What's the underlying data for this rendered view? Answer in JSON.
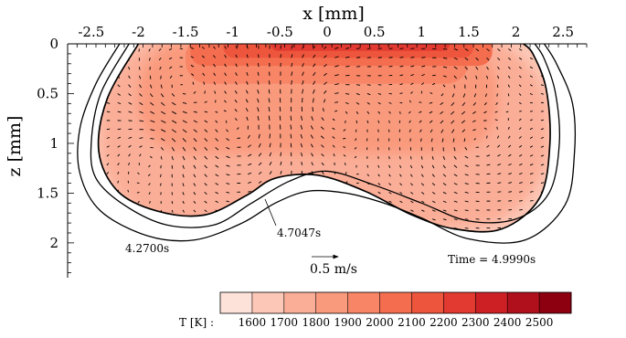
{
  "chart_data": {
    "type": "heatmap",
    "title": "",
    "xlabel": "x [mm]",
    "ylabel": "z [mm]",
    "xlim": [
      -2.75,
      2.75
    ],
    "ylim": [
      0,
      2.35
    ],
    "y_inverted": true,
    "x_ticks": [
      "-2.5",
      "-2",
      "-1.5",
      "-1",
      "-0.5",
      "0",
      "0.5",
      "1",
      "1.5",
      "2",
      "2.5"
    ],
    "x_tick_values": [
      -2.5,
      -2,
      -1.5,
      -1,
      -0.5,
      0,
      0.5,
      1,
      1.5,
      2,
      2.5
    ],
    "y_ticks": [
      "0",
      "0.5",
      "1",
      "1.5",
      "2"
    ],
    "y_tick_values": [
      0,
      0.5,
      1,
      1.5,
      2
    ],
    "colorbar": {
      "label": "T [K] :",
      "levels": [
        "1600",
        "1700",
        "1800",
        "1900",
        "2000",
        "2100",
        "2200",
        "2300",
        "2400",
        "2500"
      ],
      "level_values": [
        1600,
        1700,
        1800,
        1900,
        2000,
        2100,
        2200,
        2300,
        2400,
        2500
      ],
      "colors": [
        "#fde2da",
        "#fcc7b6",
        "#fbae97",
        "#fa9a7d",
        "#f88566",
        "#f46d4f",
        "#ee553d",
        "#e23a30",
        "#cc2025",
        "#b0101c",
        "#8c0010"
      ]
    },
    "pool_boundaries": [
      {
        "label": "4.2700s",
        "points": [
          [
            -2.2,
            0.0
          ],
          [
            -2.45,
            0.4
          ],
          [
            -2.62,
            0.85
          ],
          [
            -2.62,
            1.3
          ],
          [
            -2.4,
            1.68
          ],
          [
            -1.9,
            1.93
          ],
          [
            -1.4,
            1.97
          ],
          [
            -0.9,
            1.8
          ],
          [
            -0.55,
            1.6
          ],
          [
            -0.2,
            1.48
          ],
          [
            0.2,
            1.5
          ],
          [
            0.6,
            1.6
          ],
          [
            1.0,
            1.75
          ],
          [
            1.5,
            1.96
          ],
          [
            2.1,
            1.97
          ],
          [
            2.52,
            1.62
          ],
          [
            2.62,
            1.1
          ],
          [
            2.6,
            0.6
          ],
          [
            2.43,
            0.2
          ],
          [
            2.3,
            0.0
          ]
        ]
      },
      {
        "label": "4.7047s",
        "points": [
          [
            -2.1,
            0.0
          ],
          [
            -2.4,
            0.5
          ],
          [
            -2.5,
            1.0
          ],
          [
            -2.45,
            1.35
          ],
          [
            -2.15,
            1.62
          ],
          [
            -1.7,
            1.82
          ],
          [
            -1.2,
            1.82
          ],
          [
            -0.8,
            1.6
          ],
          [
            -0.4,
            1.38
          ],
          [
            0.0,
            1.28
          ],
          [
            0.5,
            1.42
          ],
          [
            1.0,
            1.6
          ],
          [
            1.5,
            1.78
          ],
          [
            2.0,
            1.76
          ],
          [
            2.35,
            1.5
          ],
          [
            2.46,
            1.0
          ],
          [
            2.42,
            0.5
          ],
          [
            2.3,
            0.15
          ],
          [
            2.2,
            0.0
          ]
        ]
      },
      {
        "label": "Time = 4.9990s",
        "points": [
          [
            -2.0,
            0.0
          ],
          [
            -2.33,
            0.55
          ],
          [
            -2.42,
            1.08
          ],
          [
            -2.22,
            1.48
          ],
          [
            -1.8,
            1.68
          ],
          [
            -1.3,
            1.72
          ],
          [
            -0.85,
            1.52
          ],
          [
            -0.55,
            1.35
          ],
          [
            -0.1,
            1.32
          ],
          [
            0.4,
            1.48
          ],
          [
            0.9,
            1.72
          ],
          [
            1.35,
            1.86
          ],
          [
            1.85,
            1.86
          ],
          [
            2.25,
            1.55
          ],
          [
            2.36,
            1.0
          ],
          [
            2.32,
            0.45
          ],
          [
            2.18,
            0.1
          ],
          [
            2.08,
            0.0
          ]
        ]
      }
    ],
    "temperature_regions": [
      {
        "level": 1700,
        "x_range": [
          -2.4,
          2.35
        ],
        "z_range": [
          0.0,
          1.85
        ]
      },
      {
        "level": 1800,
        "x_range": [
          -2.0,
          1.8
        ],
        "z_range": [
          0.08,
          1.1
        ]
      },
      {
        "level": 1900,
        "x_range": [
          -1.5,
          1.5
        ],
        "z_range": [
          0.0,
          0.4
        ]
      },
      {
        "level": 2000,
        "x_range": [
          -1.45,
          1.75
        ],
        "z_range": [
          0.0,
          0.22
        ]
      },
      {
        "level": 2100,
        "x_range": [
          -1.1,
          1.55
        ],
        "z_range": [
          0.0,
          0.14
        ]
      },
      {
        "level": 2200,
        "x_range": [
          -0.6,
          1.3
        ],
        "z_range": [
          0.0,
          0.07
        ]
      }
    ],
    "velocity_reference": {
      "label": "0.5 m/s",
      "value": 0.5
    },
    "annotations": [
      "4.2700s",
      "4.7047s",
      "Time = 4.9990s"
    ],
    "grid": false,
    "legend": "bottom"
  }
}
